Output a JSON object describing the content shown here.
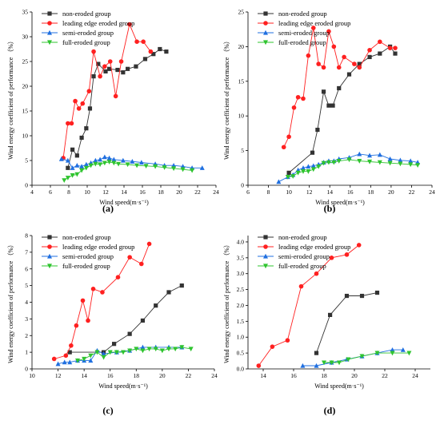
{
  "colors": {
    "non": "#333333",
    "lead": "#ff2020",
    "semi": "#1f6fe0",
    "full": "#2fc42f"
  },
  "legend": {
    "non": "non-eroded group",
    "lead": "leading edge eroded group",
    "semi": "semi-eroded group",
    "full": "full-eroded group"
  },
  "chart_data": [
    {
      "type": "line",
      "panel_label": "(a)",
      "xlabel": "Wind speed(m·s⁻¹)",
      "ylabel": "Wind energy coefficient of performance （%）",
      "xlim": [
        4,
        24
      ],
      "ylim": [
        0,
        35
      ],
      "xticks": [
        4,
        6,
        8,
        10,
        12,
        14,
        16,
        18,
        20,
        22,
        24
      ],
      "yticks": [
        0,
        5,
        10,
        15,
        20,
        25,
        30,
        35
      ],
      "series": [
        {
          "name": "non-eroded group",
          "key": "non",
          "marker": "square",
          "x": [
            7.9,
            8.4,
            8.9,
            9.4,
            9.9,
            10.3,
            10.7,
            11.2,
            12.0,
            12.4,
            13.3,
            13.9,
            14.4,
            15.3,
            16.3,
            17.2,
            17.9,
            18.6
          ],
          "y": [
            3.5,
            7.2,
            6.0,
            9.6,
            11.5,
            15.5,
            22.0,
            24.5,
            23.0,
            23.5,
            23.3,
            22.8,
            23.5,
            24.0,
            25.5,
            26.5,
            27.5,
            27.0
          ]
        },
        {
          "name": "leading edge eroded group",
          "key": "lead",
          "marker": "circle",
          "x": [
            7.4,
            7.9,
            8.3,
            8.7,
            9.1,
            9.5,
            10.2,
            10.7,
            11.4,
            11.9,
            12.5,
            13.1,
            13.7,
            14.6,
            15.4,
            16.1,
            16.9
          ],
          "y": [
            5.5,
            12.5,
            12.5,
            17.0,
            15.5,
            16.5,
            19.0,
            27.0,
            22.0,
            24.0,
            25.0,
            18.0,
            25.0,
            32.5,
            29.0,
            29.0,
            27.0
          ]
        },
        {
          "name": "semi-eroded group",
          "key": "semi",
          "marker": "triangle-up",
          "x": [
            7.2,
            7.9,
            8.4,
            8.9,
            9.4,
            9.9,
            10.4,
            10.9,
            11.4,
            11.9,
            12.4,
            12.9,
            13.9,
            14.9,
            15.9,
            17.4,
            18.4,
            19.4,
            20.4,
            21.4,
            22.5
          ],
          "y": [
            5.3,
            5.0,
            3.5,
            4.0,
            3.8,
            4.2,
            4.5,
            5.0,
            5.2,
            5.7,
            5.5,
            5.2,
            5.0,
            4.8,
            4.6,
            4.3,
            4.0,
            4.0,
            3.8,
            3.5,
            3.5
          ]
        },
        {
          "name": "full-eroded group",
          "key": "full",
          "marker": "triangle-down",
          "x": [
            7.5,
            7.9,
            8.4,
            8.9,
            9.4,
            9.9,
            10.4,
            10.9,
            11.4,
            11.9,
            12.4,
            12.9,
            13.4,
            14.4,
            15.4,
            16.4,
            17.4,
            18.4,
            19.4,
            20.4,
            21.4
          ],
          "y": [
            1.0,
            1.5,
            2.0,
            2.2,
            3.0,
            3.5,
            4.0,
            4.3,
            4.2,
            4.5,
            4.7,
            4.5,
            4.3,
            4.2,
            4.0,
            3.9,
            3.8,
            3.6,
            3.4,
            3.2,
            3.0
          ]
        }
      ]
    },
    {
      "type": "line",
      "panel_label": "(b)",
      "xlabel": "Wind speed(m·s⁻¹)",
      "ylabel": "Wind energy coefficient of performance （%）",
      "xlim": [
        6,
        24
      ],
      "ylim": [
        0,
        25
      ],
      "xticks": [
        6,
        8,
        10,
        12,
        14,
        16,
        18,
        20,
        22,
        24
      ],
      "yticks": [
        0,
        5,
        10,
        15,
        20,
        25
      ],
      "series": [
        {
          "name": "non-eroded group",
          "key": "non",
          "marker": "square",
          "x": [
            10.0,
            12.3,
            12.8,
            13.4,
            13.9,
            14.3,
            14.9,
            15.9,
            16.9,
            17.9,
            18.9,
            19.9,
            20.4
          ],
          "y": [
            1.8,
            4.7,
            8.0,
            13.5,
            11.5,
            11.5,
            14.0,
            16.0,
            17.5,
            18.5,
            19.0,
            20.0,
            19.0
          ]
        },
        {
          "name": "leading edge eroded group",
          "key": "lead",
          "marker": "circle",
          "x": [
            9.5,
            10.0,
            10.5,
            10.9,
            11.4,
            11.9,
            12.4,
            12.9,
            13.4,
            13.9,
            14.4,
            14.9,
            15.4,
            16.4,
            16.9,
            17.9,
            18.9,
            19.9,
            20.4
          ],
          "y": [
            5.5,
            7.0,
            11.2,
            12.7,
            12.5,
            18.7,
            22.7,
            17.5,
            17.0,
            22.2,
            20.0,
            17.0,
            18.5,
            17.5,
            17.0,
            19.5,
            20.7,
            19.8,
            19.8
          ]
        },
        {
          "name": "semi-eroded group",
          "key": "semi",
          "marker": "triangle-up",
          "x": [
            9.0,
            9.9,
            10.4,
            10.9,
            11.4,
            11.9,
            12.4,
            12.9,
            13.4,
            13.9,
            14.4,
            14.9,
            15.9,
            16.9,
            17.9,
            18.9,
            19.9,
            20.9,
            21.9,
            22.6
          ],
          "y": [
            0.5,
            1.2,
            1.5,
            2.2,
            2.5,
            2.7,
            2.8,
            3.0,
            3.3,
            3.5,
            3.5,
            3.8,
            4.0,
            4.5,
            4.3,
            4.4,
            3.8,
            3.6,
            3.5,
            3.3
          ]
        },
        {
          "name": "full-eroded group",
          "key": "full",
          "marker": "triangle-down",
          "x": [
            9.9,
            10.4,
            10.9,
            11.4,
            11.9,
            12.4,
            12.9,
            13.4,
            13.9,
            14.4,
            14.9,
            15.9,
            16.9,
            17.9,
            18.9,
            19.9,
            20.9,
            21.9,
            22.6
          ],
          "y": [
            1.2,
            1.3,
            1.8,
            2.0,
            2.0,
            2.3,
            2.7,
            3.2,
            3.3,
            3.3,
            3.5,
            3.7,
            3.5,
            3.4,
            3.3,
            3.2,
            3.1,
            3.0,
            2.9
          ]
        }
      ]
    },
    {
      "type": "line",
      "panel_label": "(c)",
      "xlabel": "Wind speed(m·s⁻¹)",
      "ylabel": "Wind energy coefficient of performance （%）",
      "xlim": [
        10,
        24
      ],
      "ylim": [
        0,
        8
      ],
      "xticks": [
        10,
        12,
        14,
        16,
        18,
        20,
        22,
        24
      ],
      "yticks": [
        0,
        1,
        2,
        3,
        4,
        5,
        6,
        7,
        8
      ],
      "series": [
        {
          "name": "non-eroded group",
          "key": "non",
          "marker": "square",
          "x": [
            12.9,
            15.5,
            16.3,
            17.5,
            18.5,
            19.5,
            20.5,
            21.5
          ],
          "y": [
            1.0,
            1.0,
            1.5,
            2.1,
            2.9,
            3.8,
            4.6,
            5.0
          ]
        },
        {
          "name": "leading edge eroded group",
          "key": "lead",
          "marker": "circle",
          "x": [
            11.7,
            12.6,
            13.0,
            13.4,
            13.9,
            14.3,
            14.7,
            15.4,
            16.6,
            17.5,
            18.4,
            19.0
          ],
          "y": [
            0.6,
            0.8,
            1.4,
            2.6,
            4.1,
            2.9,
            4.8,
            4.6,
            5.5,
            6.7,
            6.3,
            7.5
          ]
        },
        {
          "name": "semi-eroded group",
          "key": "semi",
          "marker": "triangle-up",
          "x": [
            12.0,
            12.5,
            12.9,
            13.5,
            14.0,
            14.5,
            15.0,
            15.5,
            16.5,
            17.5,
            18.5,
            19.5,
            20.5,
            21.5
          ],
          "y": [
            0.3,
            0.4,
            0.4,
            0.5,
            0.5,
            0.5,
            1.1,
            0.9,
            1.0,
            1.1,
            1.3,
            1.3,
            1.3,
            1.3
          ]
        },
        {
          "name": "full-eroded group",
          "key": "full",
          "marker": "triangle-down",
          "x": [
            13.5,
            14.0,
            14.5,
            15.0,
            15.5,
            16.0,
            16.5,
            17.0,
            17.5,
            18.0,
            18.5,
            19.0,
            19.5,
            20.0,
            20.5,
            21.0,
            21.5,
            22.2
          ],
          "y": [
            0.5,
            0.6,
            0.8,
            1.0,
            0.7,
            1.0,
            1.0,
            1.0,
            1.1,
            1.2,
            1.1,
            1.2,
            1.2,
            1.1,
            1.2,
            1.2,
            1.3,
            1.2
          ]
        }
      ]
    },
    {
      "type": "line",
      "panel_label": "(d)",
      "xlabel": "Wind speed(m·s⁻¹)",
      "ylabel": "Wind energy coefficient of performance （%）",
      "xlim": [
        13,
        25
      ],
      "ylim": [
        0,
        4.2
      ],
      "xticks": [
        14,
        16,
        18,
        20,
        22,
        24
      ],
      "yticks": [
        0.0,
        0.5,
        1.0,
        1.5,
        2.0,
        2.5,
        3.0,
        3.5,
        4.0
      ],
      "series": [
        {
          "name": "non-eroded group",
          "key": "non",
          "marker": "square",
          "x": [
            17.5,
            18.4,
            19.5,
            20.5,
            21.5
          ],
          "y": [
            0.5,
            1.7,
            2.3,
            2.3,
            2.4
          ]
        },
        {
          "name": "leading edge eroded group",
          "key": "lead",
          "marker": "circle",
          "x": [
            13.7,
            14.6,
            15.6,
            16.5,
            17.5,
            18.5,
            19.5,
            20.3
          ],
          "y": [
            0.1,
            0.7,
            0.9,
            2.6,
            3.0,
            3.5,
            3.6,
            3.9
          ]
        },
        {
          "name": "semi-eroded group",
          "key": "semi",
          "marker": "triangle-up",
          "x": [
            16.6,
            17.5,
            18.5,
            19.5,
            20.5,
            21.5,
            22.5,
            23.2
          ],
          "y": [
            0.1,
            0.1,
            0.2,
            0.3,
            0.4,
            0.5,
            0.6,
            0.6
          ]
        },
        {
          "name": "full-eroded group",
          "key": "full",
          "marker": "triangle-down",
          "x": [
            18.0,
            18.5,
            19.0,
            19.6,
            20.5,
            21.5,
            22.5,
            23.6
          ],
          "y": [
            0.2,
            0.2,
            0.2,
            0.3,
            0.4,
            0.5,
            0.5,
            0.5
          ]
        }
      ]
    }
  ]
}
